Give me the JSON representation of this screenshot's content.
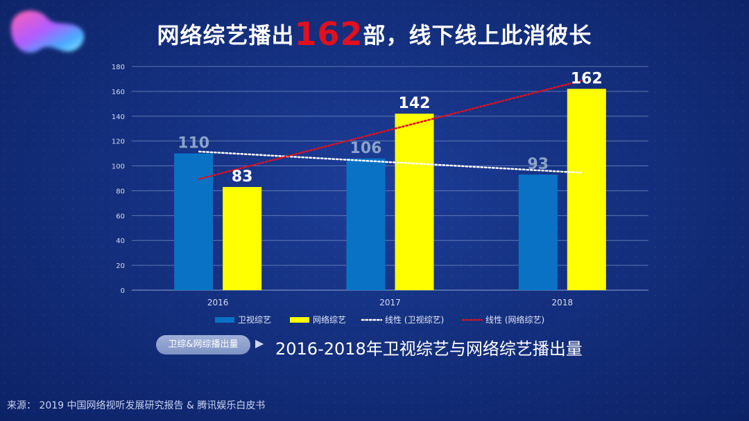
{
  "title": {
    "prefix": "网络综艺播出",
    "highlight": "162",
    "suffix": "部，线下线上此消彼长"
  },
  "caption": {
    "pill_label": "卫综&网综播出量",
    "arrow": "▶",
    "text": "2016-2018年卫视综艺与网络综艺播出量"
  },
  "source": "来源：  2019 中国网络视听发展研究报告 & 腾讯娱乐白皮书",
  "colors": {
    "title_highlight": "#e0101e",
    "series_tv": "#0a72c4",
    "series_online": "#ffff00",
    "trend_tv": "#ffffff",
    "trend_online": "#e0101e",
    "label_tv": "#8aa3c8",
    "label_online": "#ffffff"
  },
  "chart_data": {
    "type": "bar",
    "categories": [
      "2016",
      "2017",
      "2018"
    ],
    "series": [
      {
        "name": "卫视综艺",
        "values": [
          110,
          106,
          93
        ]
      },
      {
        "name": "网络综艺",
        "values": [
          83,
          142,
          162
        ]
      }
    ],
    "trendlines": [
      {
        "name": "线性 (卫视综艺)",
        "series": "卫视综艺"
      },
      {
        "name": "线性 (网络综艺)",
        "series": "网络综艺"
      }
    ],
    "ylim": [
      0,
      180
    ],
    "yticks": [
      "0",
      "20",
      "40",
      "60",
      "80",
      "100",
      "120",
      "140",
      "160",
      "180"
    ],
    "grid": true,
    "legend": "bottom",
    "xlabel": "",
    "ylabel": ""
  }
}
